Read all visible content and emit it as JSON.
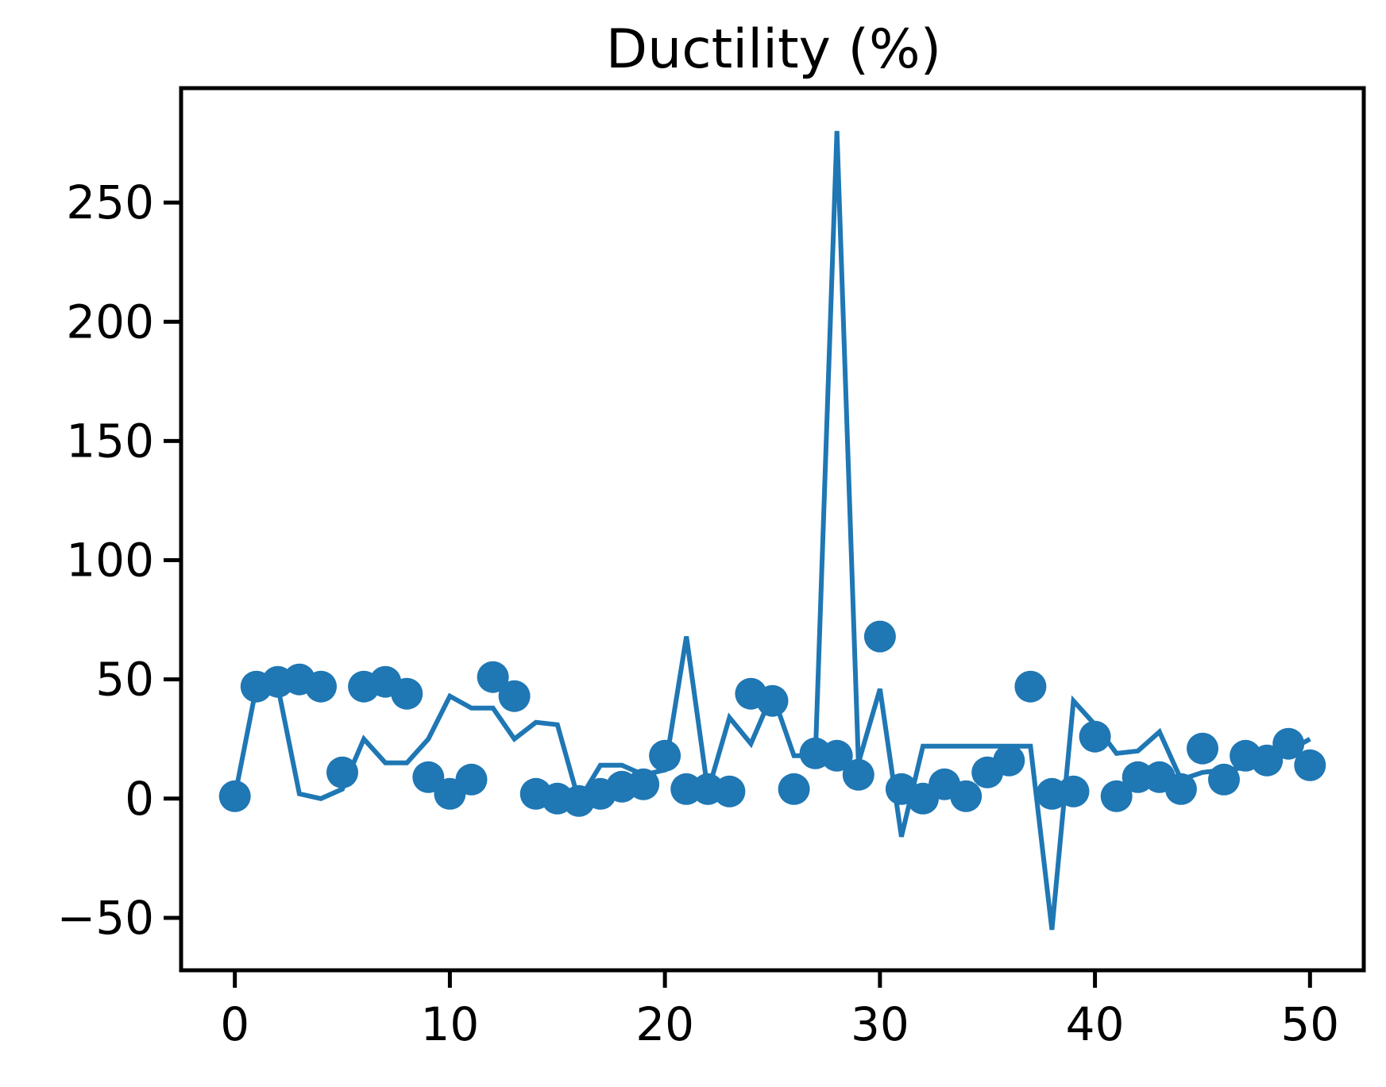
{
  "chart_data": {
    "type": "line",
    "title": "Ductility (%)",
    "xlabel": "",
    "ylabel": "",
    "xlim": [
      -2.5,
      52.5
    ],
    "ylim": [
      -72,
      298
    ],
    "xticks": [
      0,
      10,
      20,
      30,
      40,
      50
    ],
    "yticks": [
      -50,
      0,
      50,
      100,
      150,
      200,
      250
    ],
    "x_tick_labels": [
      "0",
      "10",
      "20",
      "30",
      "40",
      "50"
    ],
    "y_tick_labels": [
      "−50",
      "0",
      "50",
      "100",
      "150",
      "200",
      "250"
    ],
    "grid": false,
    "legend": "none",
    "color": "#1f77b4",
    "series": [
      {
        "style": "scatter",
        "x": [
          0,
          1,
          2,
          3,
          4,
          5,
          6,
          7,
          8,
          9,
          10,
          11,
          12,
          13,
          14,
          15,
          16,
          17,
          18,
          19,
          20,
          21,
          22,
          23,
          24,
          25,
          26,
          27,
          28,
          29,
          30,
          31,
          32,
          33,
          34,
          35,
          36,
          37,
          38,
          39,
          40,
          41,
          42,
          43,
          44,
          45,
          46,
          47,
          48,
          49,
          50
        ],
        "y": [
          1,
          47,
          49,
          50,
          47,
          11,
          47,
          49,
          44,
          9,
          2,
          8,
          51,
          43,
          2,
          0,
          -1,
          2,
          5,
          6,
          18,
          4,
          4,
          3,
          44,
          41,
          4,
          19,
          18,
          10,
          68,
          4,
          0,
          6,
          1,
          11,
          16,
          47,
          2,
          3,
          26,
          1,
          9,
          9,
          4,
          21,
          8,
          18,
          16,
          23,
          14
        ]
      },
      {
        "style": "line",
        "x": [
          0,
          1,
          2,
          3,
          4,
          5,
          6,
          7,
          8,
          9,
          10,
          11,
          12,
          13,
          14,
          15,
          16,
          17,
          18,
          19,
          20,
          21,
          22,
          23,
          24,
          25,
          26,
          27,
          28,
          29,
          30,
          31,
          32,
          33,
          34,
          35,
          36,
          37,
          38,
          39,
          40,
          41,
          42,
          43,
          44,
          45,
          46,
          47,
          48,
          49,
          50
        ],
        "y": [
          1,
          47,
          47,
          2,
          0,
          4,
          25,
          15,
          15,
          25,
          43,
          38,
          38,
          25,
          32,
          31,
          -1,
          14,
          14,
          10,
          12,
          68,
          3,
          34,
          23,
          44,
          18,
          18,
          280,
          15,
          46,
          -16,
          22,
          22,
          22,
          22,
          22,
          22,
          -55,
          41,
          31,
          19,
          20,
          28,
          8,
          11,
          12,
          13,
          14,
          20,
          25
        ]
      }
    ]
  }
}
